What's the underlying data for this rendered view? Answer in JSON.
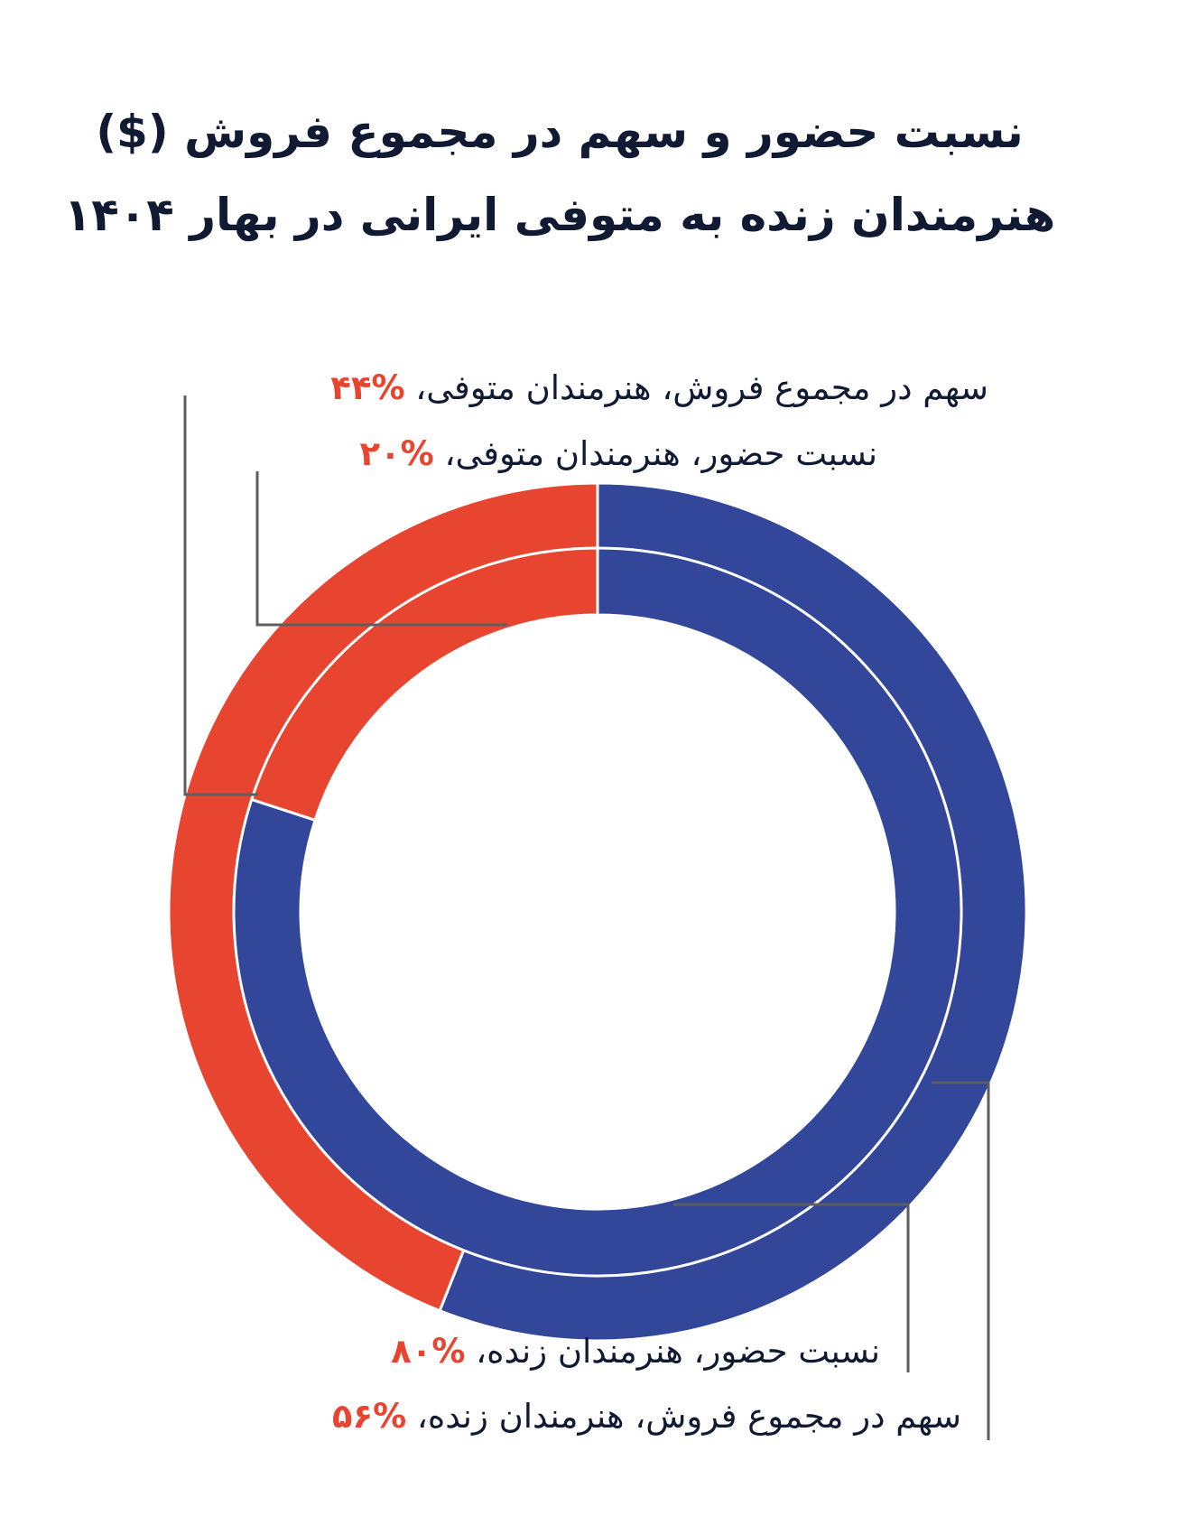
{
  "title": {
    "line1": "نسبت حضور و سهم در مجموع فروش ($)",
    "line2": "هنرمندان زنده به متوفی ایرانی در بهار ۱۴۰۴"
  },
  "colors": {
    "living": "#32469a",
    "deceased": "#e84531",
    "leader": "#5e5e5e"
  },
  "chart_data": {
    "type": "donut",
    "title": "نسبت حضور و سهم در مجموع فروش ($) هنرمندان زنده به متوفی ایرانی در بهار ۱۴۰۴",
    "rings": [
      {
        "ring": "outer",
        "slices": [
          {
            "category": "هنرمندان زنده",
            "value": 56,
            "color": "#32469a"
          },
          {
            "category": "هنرمندان متوفی",
            "value": 44,
            "color": "#e84531"
          }
        ]
      },
      {
        "ring": "inner",
        "slices": [
          {
            "category": "هنرمندان زنده",
            "value": 80,
            "color": "#32469a"
          },
          {
            "category": "هنرمندان متوفی",
            "value": 20,
            "color": "#e84531"
          }
        ]
      }
    ],
    "annotations": {
      "deceased_sales": {
        "text": "سهم در مجموع فروش، هنرمندان متوفی، ",
        "pct": "%۴۴"
      },
      "deceased_presence": {
        "text": "نسبت حضور، هنرمندان متوفی، ",
        "pct": "%۲۰"
      },
      "living_presence": {
        "text": "نسبت حضور، هنرمندان زنده، ",
        "pct": "%۸۰"
      },
      "living_sales": {
        "text": "سهم در مجموع فروش، هنرمندان زنده، ",
        "pct": "%۵۶"
      }
    }
  }
}
